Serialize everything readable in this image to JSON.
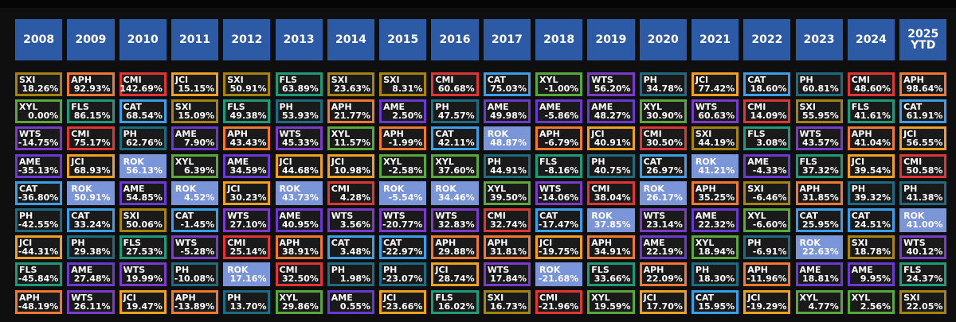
{
  "colors": {
    "SXI": "#a6820e",
    "APH": "#f07830",
    "CMI": "#e03535",
    "JCI": "#f0a020",
    "FLS": "#1e9a78",
    "CAT": "#3a9ee8",
    "XYL": "#5aa83c",
    "WTS": "#7a3cc8",
    "PH": "#1e6a80",
    "AME": "#6a3ad0",
    "ROK": "#7b95d9"
  },
  "highlight_ticker": "ROK",
  "chart_data": {
    "type": "table",
    "columns": [
      "2008",
      "2009",
      "2010",
      "2011",
      "2012",
      "2013",
      "2014",
      "2015",
      "2016",
      "2017",
      "2018",
      "2019",
      "2020",
      "2021",
      "2022",
      "2023",
      "2024",
      "2025\nYTD"
    ],
    "rows": [
      [
        [
          "SXI",
          "18.26%"
        ],
        [
          "APH",
          "92.93%"
        ],
        [
          "CMI",
          "142.69%"
        ],
        [
          "JCI",
          "15.15%"
        ],
        [
          "SXI",
          "50.91%"
        ],
        [
          "FLS",
          "63.89%"
        ],
        [
          "SXI",
          "23.63%"
        ],
        [
          "SXI",
          "8.31%"
        ],
        [
          "CMI",
          "60.68%"
        ],
        [
          "CAT",
          "75.03%"
        ],
        [
          "XYL",
          "-1.00%"
        ],
        [
          "WTS",
          "56.20%"
        ],
        [
          "PH",
          "34.78%"
        ],
        [
          "JCI",
          "77.42%"
        ],
        [
          "CAT",
          "18.60%"
        ],
        [
          "PH",
          "60.81%"
        ],
        [
          "CMI",
          "48.60%"
        ],
        [
          "APH",
          "98.64%"
        ]
      ],
      [
        [
          "XYL",
          "0.00%"
        ],
        [
          "FLS",
          "86.15%"
        ],
        [
          "CAT",
          "68.54%"
        ],
        [
          "SXI",
          "15.09%"
        ],
        [
          "FLS",
          "49.38%"
        ],
        [
          "PH",
          "53.93%"
        ],
        [
          "APH",
          "21.77%"
        ],
        [
          "AME",
          "2.50%"
        ],
        [
          "PH",
          "47.57%"
        ],
        [
          "AME",
          "49.98%"
        ],
        [
          "AME",
          "-5.86%"
        ],
        [
          "AME",
          "48.27%"
        ],
        [
          "XYL",
          "30.90%"
        ],
        [
          "WTS",
          "60.63%"
        ],
        [
          "CMI",
          "14.09%"
        ],
        [
          "SXI",
          "55.95%"
        ],
        [
          "FLS",
          "41.61%"
        ],
        [
          "CAT",
          "61.91%"
        ]
      ],
      [
        [
          "WTS",
          "-14.75%"
        ],
        [
          "CMI",
          "75.17%"
        ],
        [
          "PH",
          "62.76%"
        ],
        [
          "AME",
          "7.90%"
        ],
        [
          "APH",
          "43.43%"
        ],
        [
          "WTS",
          "45.33%"
        ],
        [
          "XYL",
          "11.57%"
        ],
        [
          "APH",
          "-1.99%"
        ],
        [
          "CAT",
          "42.11%"
        ],
        [
          "ROK",
          "48.87%"
        ],
        [
          "APH",
          "-6.79%"
        ],
        [
          "JCI",
          "40.91%"
        ],
        [
          "CMI",
          "30.50%"
        ],
        [
          "SXI",
          "44.19%"
        ],
        [
          "FLS",
          "3.08%"
        ],
        [
          "WTS",
          "43.57%"
        ],
        [
          "APH",
          "41.04%"
        ],
        [
          "JCI",
          "56.55%"
        ]
      ],
      [
        [
          "AME",
          "-35.13%"
        ],
        [
          "JCI",
          "68.93%"
        ],
        [
          "ROK",
          "56.13%"
        ],
        [
          "XYL",
          "6.39%"
        ],
        [
          "AME",
          "34.59%"
        ],
        [
          "JCI",
          "44.68%"
        ],
        [
          "JCI",
          "10.98%"
        ],
        [
          "XYL",
          "-2.58%"
        ],
        [
          "XYL",
          "37.60%"
        ],
        [
          "PH",
          "44.91%"
        ],
        [
          "FLS",
          "-8.16%"
        ],
        [
          "PH",
          "40.75%"
        ],
        [
          "CAT",
          "26.97%"
        ],
        [
          "ROK",
          "41.21%"
        ],
        [
          "AME",
          "-4.33%"
        ],
        [
          "FLS",
          "37.32%"
        ],
        [
          "JCI",
          "39.54%"
        ],
        [
          "CMI",
          "50.58%"
        ]
      ],
      [
        [
          "CAT",
          "-36.80%"
        ],
        [
          "ROK",
          "50.91%"
        ],
        [
          "AME",
          "54.85%"
        ],
        [
          "ROK",
          "4.52%"
        ],
        [
          "JCI",
          "30.23%"
        ],
        [
          "ROK",
          "43.73%"
        ],
        [
          "CMI",
          "4.28%"
        ],
        [
          "ROK",
          "-5.54%"
        ],
        [
          "ROK",
          "34.46%"
        ],
        [
          "XYL",
          "39.50%"
        ],
        [
          "WTS",
          "-14.06%"
        ],
        [
          "CMI",
          "38.04%"
        ],
        [
          "ROK",
          "26.17%"
        ],
        [
          "APH",
          "35.25%"
        ],
        [
          "SXI",
          "-6.46%"
        ],
        [
          "APH",
          "31.85%"
        ],
        [
          "PH",
          "39.32%"
        ],
        [
          "PH",
          "41.38%"
        ]
      ],
      [
        [
          "PH",
          "-42.55%"
        ],
        [
          "CAT",
          "33.24%"
        ],
        [
          "SXI",
          "50.06%"
        ],
        [
          "CAT",
          "-1.45%"
        ],
        [
          "WTS",
          "27.10%"
        ],
        [
          "AME",
          "40.95%"
        ],
        [
          "WTS",
          "3.56%"
        ],
        [
          "WTS",
          "-20.77%"
        ],
        [
          "WTS",
          "32.83%"
        ],
        [
          "CMI",
          "32.74%"
        ],
        [
          "CAT",
          "-17.47%"
        ],
        [
          "ROK",
          "37.85%"
        ],
        [
          "WTS",
          "23.14%"
        ],
        [
          "AME",
          "22.32%"
        ],
        [
          "XYL",
          "-6.60%"
        ],
        [
          "CAT",
          "25.95%"
        ],
        [
          "CAT",
          "24.51%"
        ],
        [
          "ROK",
          "41.00%"
        ]
      ],
      [
        [
          "JCI",
          "-44.31%"
        ],
        [
          "PH",
          "29.38%"
        ],
        [
          "FLS",
          "27.53%"
        ],
        [
          "WTS",
          "-5.28%"
        ],
        [
          "CMI",
          "25.14%"
        ],
        [
          "APH",
          "38.91%"
        ],
        [
          "CAT",
          "3.48%"
        ],
        [
          "CAT",
          "-22.97%"
        ],
        [
          "APH",
          "29.88%"
        ],
        [
          "APH",
          "31.81%"
        ],
        [
          "JCI",
          "-19.75%"
        ],
        [
          "APH",
          "34.91%"
        ],
        [
          "AME",
          "22.19%"
        ],
        [
          "XYL",
          "18.94%"
        ],
        [
          "PH",
          "-6.91%"
        ],
        [
          "ROK",
          "22.63%"
        ],
        [
          "SXI",
          "18.78%"
        ],
        [
          "WTS",
          "40.12%"
        ]
      ],
      [
        [
          "FLS",
          "-45.84%"
        ],
        [
          "AME",
          "27.48%"
        ],
        [
          "WTS",
          "19.99%"
        ],
        [
          "PH",
          "-10.08%"
        ],
        [
          "ROK",
          "17.16%"
        ],
        [
          "CMI",
          "32.50%"
        ],
        [
          "PH",
          "1.98%"
        ],
        [
          "PH",
          "-23.07%"
        ],
        [
          "JCI",
          "28.74%"
        ],
        [
          "WTS",
          "17.84%"
        ],
        [
          "ROK",
          "-21.68%"
        ],
        [
          "FLS",
          "33.66%"
        ],
        [
          "APH",
          "22.09%"
        ],
        [
          "PH",
          "18.30%"
        ],
        [
          "APH",
          "-11.96%"
        ],
        [
          "AME",
          "18.81%"
        ],
        [
          "AME",
          "9.95%"
        ],
        [
          "FLS",
          "24.37%"
        ]
      ],
      [
        [
          "APH",
          "-48.19%"
        ],
        [
          "WTS",
          "26.11%"
        ],
        [
          "JCI",
          "19.47%"
        ],
        [
          "APH",
          "-13.89%"
        ],
        [
          "PH",
          "13.70%"
        ],
        [
          "XYL",
          "29.86%"
        ],
        [
          "AME",
          "0.55%"
        ],
        [
          "JCI",
          "-23.66%"
        ],
        [
          "FLS",
          "16.02%"
        ],
        [
          "SXI",
          "16.73%"
        ],
        [
          "CMI",
          "-21.96%"
        ],
        [
          "XYL",
          "19.59%"
        ],
        [
          "JCI",
          "17.70%"
        ],
        [
          "CAT",
          "15.95%"
        ],
        [
          "JCI",
          "-19.29%"
        ],
        [
          "XYL",
          "4.77%"
        ],
        [
          "XYL",
          "2.56%"
        ],
        [
          "SXI",
          "22.05%"
        ]
      ]
    ]
  }
}
